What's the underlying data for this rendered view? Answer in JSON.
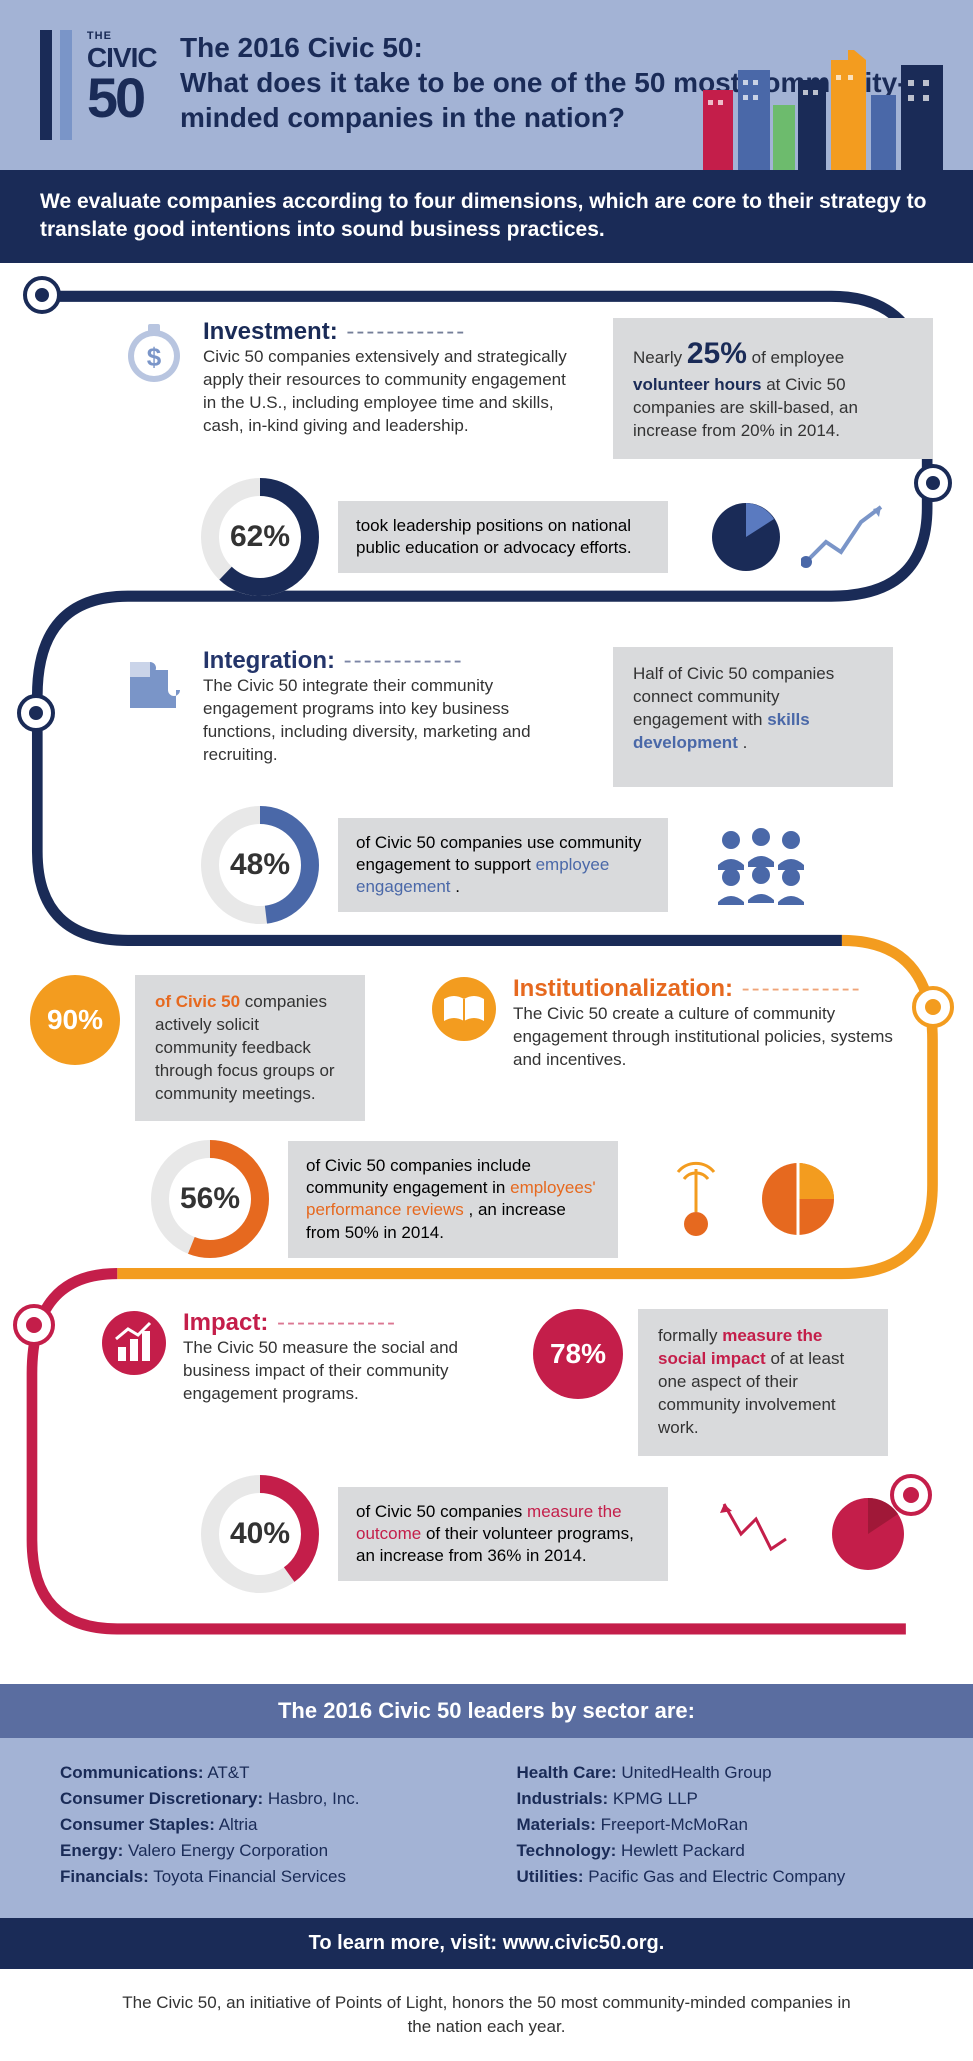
{
  "colors": {
    "navy": "#1a2b57",
    "darkblue": "#24356a",
    "midblue": "#4a68a8",
    "lightblue": "#7a95c8",
    "periwinkle": "#a3b3d5",
    "slate": "#5a6da0",
    "orange": "#f39c1f",
    "darkorange": "#e6691f",
    "crimson": "#c41e4a",
    "darkred": "#a01838",
    "grey": "#d9dadc"
  },
  "logo": {
    "the": "THE",
    "civic": "CIVIC",
    "fifty": "50",
    "bar_colors": [
      "#1a2b57",
      "#7a95c8"
    ]
  },
  "header": {
    "title": "The 2016 Civic 50:\nWhat does it take to be one of the 50 most community-minded companies in the nation?"
  },
  "subheader": "We evaluate companies according to four dimensions, which are core to their strategy to translate good intentions into sound business practices.",
  "sections": {
    "investment": {
      "title": "Investment:",
      "color": "#1a2b57",
      "accent": "#4a68a8",
      "desc": "Civic 50 companies extensively and strategically apply their resources to community engagement in the U.S., including employee time and skills, cash, in-kind giving and leadership.",
      "callout_top_prefix": "Nearly ",
      "callout_top_big": "25%",
      "callout_top_mid": " of employee ",
      "callout_top_em": "volunteer hours",
      "callout_top_suffix": " at Civic 50 companies are skill-based, an increase from 20% in 2014.",
      "pct": 62,
      "pct_label": "62%",
      "pct_text": "took leadership positions on national public education or advocacy efforts."
    },
    "integration": {
      "title": "Integration:",
      "color": "#24356a",
      "accent": "#5a7ac0",
      "desc": "The Civic 50 integrate their community engagement programs into key business functions, including diversity, marketing and recruiting.",
      "callout_top_prefix": "Half of Civic 50 companies connect community engagement with ",
      "callout_top_em": "skills development",
      "callout_top_suffix": ".",
      "pct": 48,
      "pct_label": "48%",
      "pct_text_prefix": "of Civic 50 companies use community engagement to support ",
      "pct_text_em": "employee engagement",
      "pct_text_suffix": "."
    },
    "institution": {
      "title": "Institutionalization:",
      "color": "#e6691f",
      "accent": "#f39c1f",
      "desc": "The Civic 50 create a culture of community engagement through institutional policies, systems and incentives.",
      "badge_pct": "90%",
      "badge_text_em": "of Civic 50",
      "badge_text": " companies actively solicit community feedback through focus groups or community meetings.",
      "pct": 56,
      "pct_label": "56%",
      "pct_text_prefix": "of Civic 50 companies include community engagement in ",
      "pct_text_em": "employees' performance reviews",
      "pct_text_suffix": ", an increase from 50% in 2014."
    },
    "impact": {
      "title": "Impact:",
      "color": "#c41e4a",
      "accent": "#a01838",
      "desc": "The Civic 50 measure the social and business impact of their community engagement programs.",
      "badge_pct": "78%",
      "badge_text_prefix": "formally ",
      "badge_text_em": "measure the social impact",
      "badge_text_suffix": " of at least one aspect of their community involvement work.",
      "pct": 40,
      "pct_label": "40%",
      "pct_text_prefix": "of Civic 50 companies ",
      "pct_text_em": "measure the outcome",
      "pct_text_suffix": " of their volunteer programs, an increase from 36% in 2014."
    }
  },
  "leaders": {
    "title": "The 2016 Civic 50 leaders by sector are:",
    "left": [
      {
        "sector": "Communications:",
        "company": "AT&T"
      },
      {
        "sector": "Consumer Discretionary:",
        "company": "Hasbro, Inc."
      },
      {
        "sector": "Consumer Staples:",
        "company": "Altria"
      },
      {
        "sector": "Energy:",
        "company": "Valero Energy Corporation"
      },
      {
        "sector": "Financials:",
        "company": "Toyota Financial Services"
      }
    ],
    "right": [
      {
        "sector": "Health Care:",
        "company": "UnitedHealth Group"
      },
      {
        "sector": "Industrials:",
        "company": "KPMG LLP"
      },
      {
        "sector": "Materials:",
        "company": "Freeport-McMoRan"
      },
      {
        "sector": "Technology:",
        "company": "Hewlett Packard"
      },
      {
        "sector": "Utilities:",
        "company": "Pacific Gas and Electric Company"
      }
    ]
  },
  "learn_more": "To learn more, visit: www.civic50.org.",
  "footer": "The Civic 50, an initiative of Points of Light, honors the 50 most community-minded companies in the nation each year."
}
